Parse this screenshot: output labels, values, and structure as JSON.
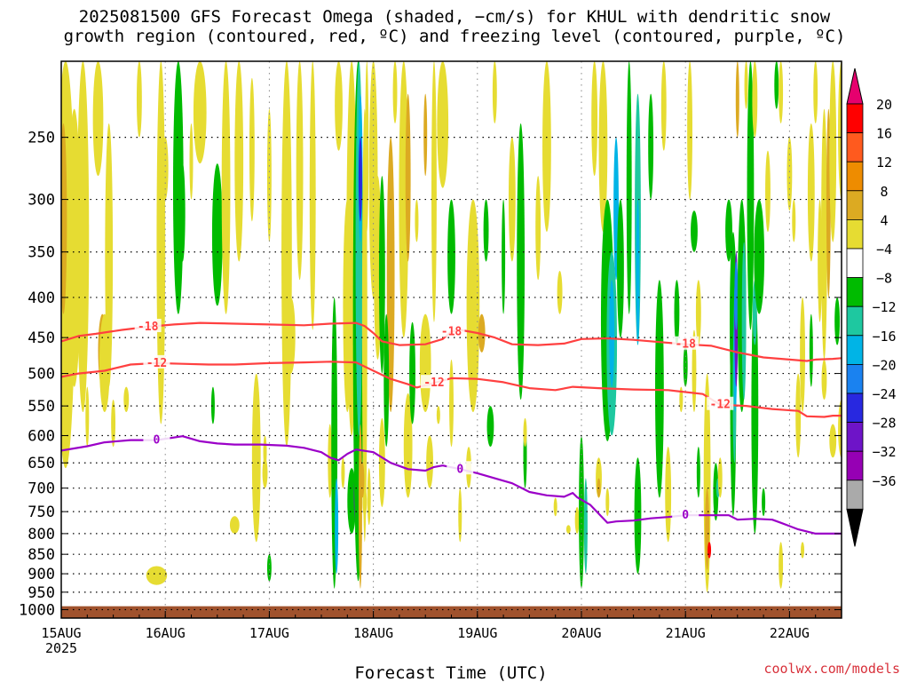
{
  "title": {
    "line1": "2025081500 GFS Forecast Omega (shaded, −cm/s) for KHUL with dendritic snow",
    "line2": "growth region (contoured, red, ºC) and freezing level (contoured, purple, ºC)"
  },
  "credit": "coolwx.com/models",
  "chart_data": {
    "type": "heatmap",
    "xlabel": "Forecast Time (UTC)",
    "x_ticks": [
      "15AUG\n2025",
      "16AUG",
      "17AUG",
      "18AUG",
      "19AUG",
      "20AUG",
      "21AUG",
      "22AUG"
    ],
    "x_range_hours": [
      0,
      180
    ],
    "ylabel": "",
    "y_scale": "log",
    "y_ticks": [
      250,
      300,
      350,
      400,
      450,
      500,
      550,
      600,
      650,
      700,
      750,
      800,
      850,
      900,
      950,
      1000
    ],
    "y_range_hpa": [
      200,
      1025
    ],
    "grid": true,
    "colorbar": {
      "labels": [
        "20",
        "16",
        "12",
        "8",
        "4",
        "−4",
        "−8",
        "−12",
        "−16",
        "−20",
        "−24",
        "−28",
        "−32",
        "−36"
      ],
      "colors": [
        "#ff0000",
        "#ff5a1e",
        "#ee8c00",
        "#dcaa22",
        "#e6dc32",
        "#ffffff",
        "#00bb00",
        "#1ec8a0",
        "#00b4e6",
        "#1a82f0",
        "#2828e0",
        "#6e14c8",
        "#9600b4",
        "#aaaaaa"
      ],
      "top_arrow_color": "#e6006e",
      "bottom_arrow_color": "#000000"
    },
    "terrain_color": "#a0522d",
    "contours": [
      {
        "label": "-18",
        "color": "#ff4040",
        "points": [
          [
            0,
            455
          ],
          [
            4,
            448
          ],
          [
            8,
            445
          ],
          [
            14,
            440
          ],
          [
            20,
            436
          ],
          [
            26,
            433
          ],
          [
            32,
            431
          ],
          [
            40,
            432
          ],
          [
            48,
            433
          ],
          [
            56,
            434
          ],
          [
            62,
            432
          ],
          [
            68,
            431
          ],
          [
            70,
            435
          ],
          [
            72,
            444
          ],
          [
            74,
            455
          ],
          [
            78,
            460
          ],
          [
            84,
            459
          ],
          [
            88,
            452
          ],
          [
            90,
            442
          ],
          [
            92,
            440
          ],
          [
            96,
            444
          ],
          [
            100,
            450
          ],
          [
            104,
            459
          ],
          [
            110,
            460
          ],
          [
            116,
            458
          ],
          [
            120,
            452
          ],
          [
            126,
            451
          ],
          [
            132,
            453
          ],
          [
            138,
            456
          ],
          [
            144,
            459
          ],
          [
            150,
            461
          ],
          [
            156,
            470
          ],
          [
            162,
            477
          ],
          [
            168,
            480
          ],
          [
            172,
            482
          ],
          [
            174,
            480
          ],
          [
            178,
            479
          ],
          [
            180,
            478
          ]
        ]
      },
      {
        "label": "-12",
        "color": "#ff4040",
        "points": [
          [
            0,
            505
          ],
          [
            4,
            500
          ],
          [
            10,
            496
          ],
          [
            16,
            487
          ],
          [
            22,
            485
          ],
          [
            28,
            486
          ],
          [
            34,
            487
          ],
          [
            40,
            487
          ],
          [
            48,
            485
          ],
          [
            56,
            484
          ],
          [
            62,
            483
          ],
          [
            68,
            484
          ],
          [
            72,
            496
          ],
          [
            76,
            508
          ],
          [
            80,
            516
          ],
          [
            82,
            521
          ],
          [
            86,
            514
          ],
          [
            90,
            507
          ],
          [
            96,
            508
          ],
          [
            102,
            513
          ],
          [
            108,
            522
          ],
          [
            114,
            525
          ],
          [
            118,
            520
          ],
          [
            124,
            522
          ],
          [
            132,
            524
          ],
          [
            140,
            525
          ],
          [
            148,
            531
          ],
          [
            152,
            548
          ],
          [
            158,
            550
          ],
          [
            164,
            555
          ],
          [
            170,
            558
          ],
          [
            172,
            567
          ],
          [
            176,
            568
          ],
          [
            178,
            566
          ],
          [
            180,
            566
          ]
        ]
      },
      {
        "label": "0",
        "color": "#9b00c8",
        "points": [
          [
            0,
            627
          ],
          [
            6,
            619
          ],
          [
            10,
            612
          ],
          [
            16,
            608
          ],
          [
            22,
            608
          ],
          [
            28,
            601
          ],
          [
            32,
            610
          ],
          [
            36,
            614
          ],
          [
            40,
            616
          ],
          [
            46,
            616
          ],
          [
            52,
            618
          ],
          [
            56,
            622
          ],
          [
            60,
            630
          ],
          [
            62,
            640
          ],
          [
            64,
            645
          ],
          [
            66,
            633
          ],
          [
            68,
            625
          ],
          [
            72,
            630
          ],
          [
            76,
            650
          ],
          [
            80,
            662
          ],
          [
            84,
            665
          ],
          [
            86,
            658
          ],
          [
            88,
            655
          ],
          [
            92,
            662
          ],
          [
            96,
            670
          ],
          [
            100,
            680
          ],
          [
            104,
            690
          ],
          [
            108,
            708
          ],
          [
            112,
            715
          ],
          [
            116,
            718
          ],
          [
            118,
            710
          ],
          [
            119,
            719
          ],
          [
            122,
            735
          ],
          [
            126,
            775
          ],
          [
            128,
            772
          ],
          [
            132,
            770
          ],
          [
            136,
            765
          ],
          [
            140,
            762
          ],
          [
            144,
            758
          ],
          [
            148,
            758
          ],
          [
            152,
            758
          ],
          [
            154,
            758
          ],
          [
            156,
            768
          ],
          [
            160,
            766
          ],
          [
            164,
            768
          ],
          [
            166,
            775
          ],
          [
            170,
            790
          ],
          [
            174,
            800
          ],
          [
            180,
            800
          ]
        ]
      }
    ]
  }
}
